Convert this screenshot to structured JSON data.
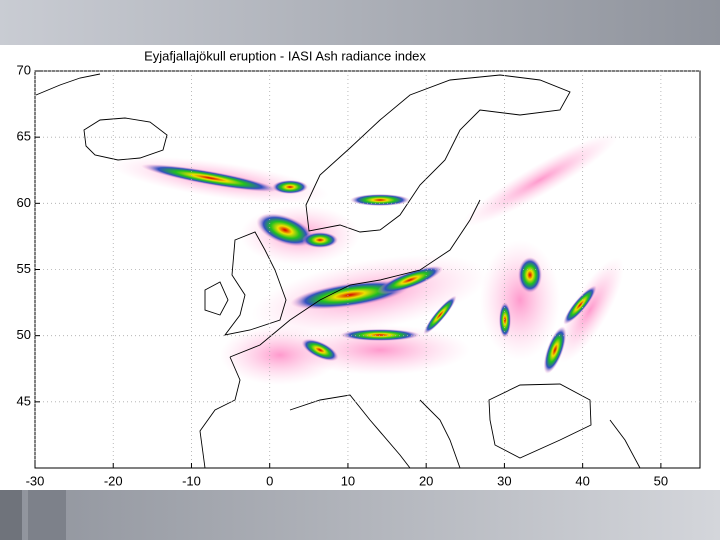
{
  "chart_data": {
    "type": "map",
    "title": "Eyjafjallajökull eruption - IASI Ash radiance index",
    "xlim": [
      -30,
      55
    ],
    "ylim": [
      40,
      70
    ],
    "xticks": [
      -30,
      -20,
      -10,
      0,
      10,
      20,
      30,
      40,
      50
    ],
    "yticks": [
      45,
      50,
      55,
      60,
      65,
      70
    ]
  }
}
